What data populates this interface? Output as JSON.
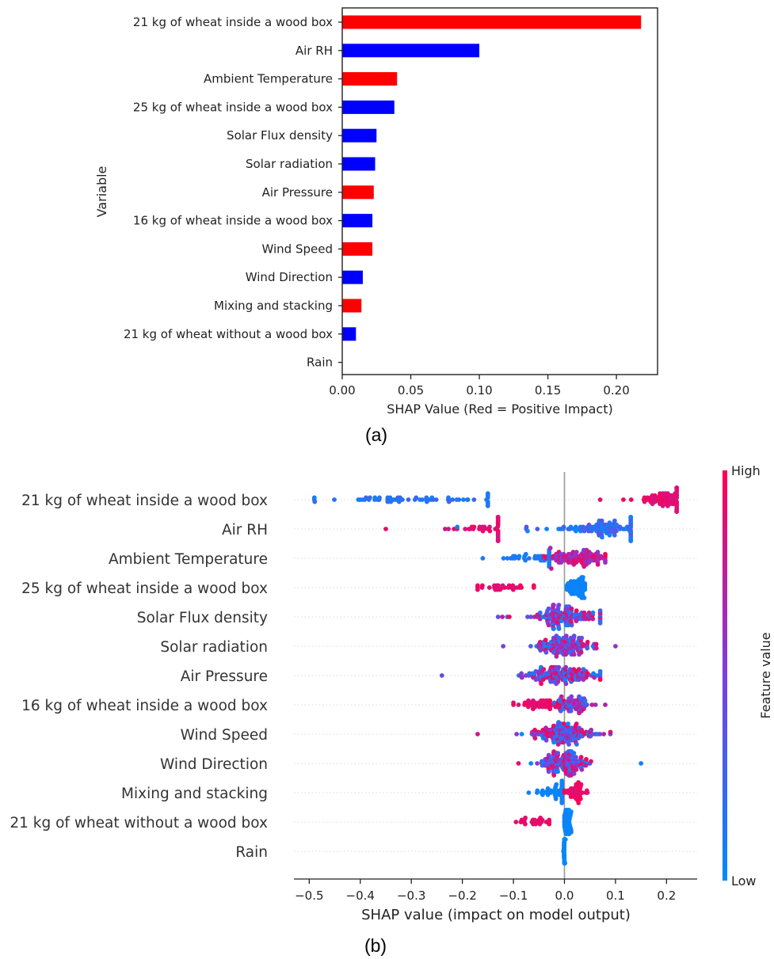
{
  "chart_data": [
    {
      "type": "bar",
      "orientation": "horizontal",
      "panel_label": "(a)",
      "xlabel": "SHAP Value (Red = Positive Impact)",
      "ylabel": "Variable",
      "xlim": [
        0,
        0.23
      ],
      "xticks": [
        "0.00",
        "0.05",
        "0.10",
        "0.15",
        "0.20"
      ],
      "xtick_values": [
        0,
        0.05,
        0.1,
        0.15,
        0.2
      ],
      "categories": [
        "21 kg of wheat inside a wood box",
        "Air RH",
        "Ambient Temperature",
        "25 kg of wheat inside a wood box",
        "Solar Flux density",
        "Solar radiation",
        "Air Pressure",
        "16 kg of wheat inside a wood box",
        "Wind Speed",
        "Wind Direction",
        "Mixing and stacking",
        "21 kg of wheat without a wood box",
        "Rain"
      ],
      "values": [
        0.218,
        0.1,
        0.04,
        0.038,
        0.025,
        0.024,
        0.023,
        0.022,
        0.022,
        0.015,
        0.014,
        0.01,
        0.0
      ],
      "impact": [
        "positive",
        "negative",
        "positive",
        "negative",
        "negative",
        "negative",
        "positive",
        "negative",
        "positive",
        "negative",
        "positive",
        "negative",
        "negative"
      ],
      "colors": {
        "positive": "#ff0000",
        "negative": "#0000ff"
      }
    },
    {
      "type": "scatter",
      "subtype": "beeswarm",
      "panel_label": "(b)",
      "xlabel": "SHAP value (impact on model output)",
      "xlim": [
        -0.53,
        0.26
      ],
      "xticks": [
        "−0.5",
        "−0.4",
        "−0.3",
        "−0.2",
        "−0.1",
        "0.0",
        "0.1",
        "0.2"
      ],
      "xtick_values": [
        -0.5,
        -0.4,
        -0.3,
        -0.2,
        -0.1,
        0.0,
        0.1,
        0.2
      ],
      "colorbar": {
        "title": "Feature value",
        "high": "High",
        "low": "Low",
        "colors": [
          "#ff0052",
          "#7b3fe0",
          "#008bfb"
        ]
      },
      "categories": [
        "21 kg of wheat inside a wood box",
        "Air RH",
        "Ambient Temperature",
        "25 kg of wheat inside a wood box",
        "Solar Flux density",
        "Solar radiation",
        "Air Pressure",
        "16 kg of wheat inside a wood box",
        "Wind Speed",
        "Wind Direction",
        "Mixing and stacking",
        "21 kg of wheat without a wood box",
        "Rain"
      ],
      "series": [
        {
          "name": "21 kg of wheat inside a wood box",
          "groups": [
            {
              "min": -0.49,
              "max": -0.15,
              "center": -0.3,
              "spread": 0.1,
              "n": 60,
              "v": [
                0.05,
                0.25
              ]
            },
            {
              "min": 0.07,
              "max": 0.22,
              "center": 0.2,
              "spread": 0.025,
              "n": 80,
              "v": [
                0.8,
                1.0
              ]
            }
          ]
        },
        {
          "name": "Air RH",
          "groups": [
            {
              "min": -0.35,
              "max": -0.13,
              "center": -0.15,
              "spread": 0.04,
              "n": 40,
              "v": [
                0.8,
                1.0
              ]
            },
            {
              "min": -0.21,
              "max": 0.13,
              "center": 0.08,
              "spread": 0.05,
              "n": 110,
              "v": [
                0.0,
                0.4
              ]
            }
          ]
        },
        {
          "name": "Ambient Temperature",
          "groups": [
            {
              "min": -0.16,
              "max": -0.03,
              "center": -0.06,
              "spread": 0.025,
              "n": 35,
              "v": [
                0.0,
                0.25
              ]
            },
            {
              "min": -0.04,
              "max": 0.08,
              "center": 0.02,
              "spread": 0.03,
              "n": 110,
              "v": [
                0.45,
                1.0
              ]
            }
          ]
        },
        {
          "name": "25 kg of wheat inside a wood box",
          "groups": [
            {
              "min": -0.17,
              "max": -0.06,
              "center": -0.12,
              "spread": 0.03,
              "n": 30,
              "v": [
                0.85,
                1.0
              ]
            },
            {
              "min": 0.005,
              "max": 0.04,
              "center": 0.025,
              "spread": 0.01,
              "n": 60,
              "v": [
                0.0,
                0.1
              ]
            }
          ]
        },
        {
          "name": "Solar Flux density",
          "groups": [
            {
              "min": -0.13,
              "max": 0.07,
              "center": 0.0,
              "spread": 0.035,
              "n": 140,
              "v": [
                0.0,
                1.0
              ]
            }
          ]
        },
        {
          "name": "Solar radiation",
          "groups": [
            {
              "min": -0.12,
              "max": 0.1,
              "center": 0.0,
              "spread": 0.03,
              "n": 140,
              "v": [
                0.0,
                1.0
              ]
            }
          ]
        },
        {
          "name": "Air Pressure",
          "groups": [
            {
              "min": -0.24,
              "max": 0.07,
              "center": 0.0,
              "spread": 0.04,
              "n": 140,
              "v": [
                0.0,
                1.0
              ]
            }
          ]
        },
        {
          "name": "16 kg of wheat inside a wood box",
          "groups": [
            {
              "min": -0.1,
              "max": -0.01,
              "center": -0.05,
              "spread": 0.025,
              "n": 50,
              "v": [
                0.85,
                1.0
              ]
            },
            {
              "min": -0.02,
              "max": 0.08,
              "center": 0.015,
              "spread": 0.02,
              "n": 70,
              "v": [
                0.0,
                1.0
              ]
            }
          ]
        },
        {
          "name": "Wind Speed",
          "groups": [
            {
              "min": -0.17,
              "max": 0.09,
              "center": 0.0,
              "spread": 0.035,
              "n": 150,
              "v": [
                0.0,
                1.0
              ]
            }
          ]
        },
        {
          "name": "Wind Direction",
          "groups": [
            {
              "min": -0.09,
              "max": 0.15,
              "center": 0.0,
              "spread": 0.025,
              "n": 150,
              "v": [
                0.0,
                1.0
              ]
            }
          ]
        },
        {
          "name": "Mixing and stacking",
          "groups": [
            {
              "min": -0.07,
              "max": -0.005,
              "center": -0.02,
              "spread": 0.02,
              "n": 40,
              "v": [
                0.0,
                0.1
              ]
            },
            {
              "min": 0.0,
              "max": 0.045,
              "center": 0.02,
              "spread": 0.012,
              "n": 45,
              "v": [
                0.85,
                1.0
              ]
            }
          ]
        },
        {
          "name": "21 kg of wheat without a wood box",
          "groups": [
            {
              "min": -0.095,
              "max": -0.03,
              "center": -0.06,
              "spread": 0.018,
              "n": 25,
              "v": [
                0.85,
                1.0
              ]
            },
            {
              "min": 0.0,
              "max": 0.013,
              "center": 0.006,
              "spread": 0.004,
              "n": 50,
              "v": [
                0.0,
                0.1
              ]
            }
          ]
        },
        {
          "name": "Rain",
          "groups": [
            {
              "min": -0.002,
              "max": 0.002,
              "center": 0.0,
              "spread": 0.0005,
              "n": 40,
              "v": [
                0.0,
                0.05
              ]
            }
          ]
        }
      ]
    }
  ]
}
